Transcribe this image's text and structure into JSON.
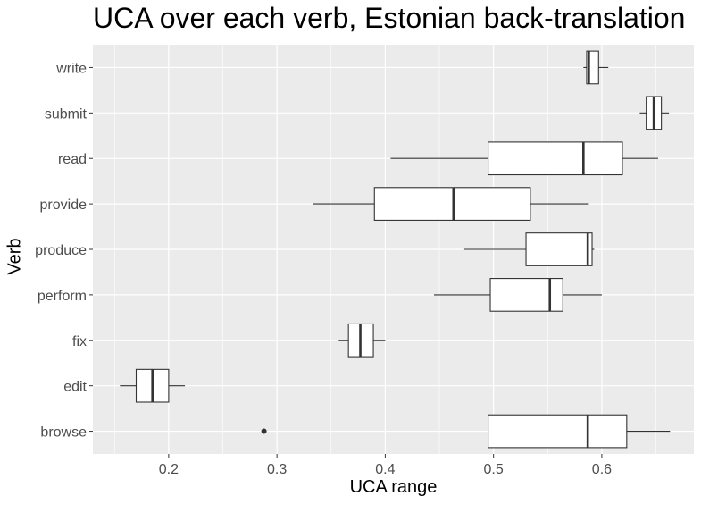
{
  "chart_data": {
    "type": "boxplot",
    "orientation": "horizontal",
    "title": "UCA over each verb, Estonian back-translation",
    "xlabel": "UCA range",
    "ylabel": "Verb",
    "xlim": [
      0.13,
      0.685
    ],
    "x_ticks": [
      0.2,
      0.3,
      0.4,
      0.5,
      0.6
    ],
    "x_tick_labels": [
      "0.2",
      "0.3",
      "0.4",
      "0.5",
      "0.6"
    ],
    "grid": true,
    "categories": [
      "browse",
      "edit",
      "fix",
      "perform",
      "produce",
      "provide",
      "read",
      "submit",
      "write"
    ],
    "boxes": [
      {
        "label": "browse",
        "whisker_low": 0.495,
        "q1": 0.495,
        "median": 0.587,
        "q3": 0.623,
        "whisker_high": 0.663,
        "outliers": [
          0.288
        ]
      },
      {
        "label": "edit",
        "whisker_low": 0.155,
        "q1": 0.17,
        "median": 0.185,
        "q3": 0.2,
        "whisker_high": 0.215,
        "outliers": []
      },
      {
        "label": "fix",
        "whisker_low": 0.357,
        "q1": 0.366,
        "median": 0.377,
        "q3": 0.389,
        "whisker_high": 0.4,
        "outliers": []
      },
      {
        "label": "perform",
        "whisker_low": 0.445,
        "q1": 0.497,
        "median": 0.552,
        "q3": 0.564,
        "whisker_high": 0.6,
        "outliers": []
      },
      {
        "label": "produce",
        "whisker_low": 0.473,
        "q1": 0.53,
        "median": 0.587,
        "q3": 0.591,
        "whisker_high": 0.593,
        "outliers": []
      },
      {
        "label": "provide",
        "whisker_low": 0.333,
        "q1": 0.39,
        "median": 0.463,
        "q3": 0.534,
        "whisker_high": 0.588,
        "outliers": []
      },
      {
        "label": "read",
        "whisker_low": 0.405,
        "q1": 0.495,
        "median": 0.583,
        "q3": 0.619,
        "whisker_high": 0.652,
        "outliers": []
      },
      {
        "label": "submit",
        "whisker_low": 0.635,
        "q1": 0.641,
        "median": 0.648,
        "q3": 0.655,
        "whisker_high": 0.662,
        "outliers": []
      },
      {
        "label": "write",
        "whisker_low": 0.583,
        "q1": 0.586,
        "median": 0.588,
        "q3": 0.597,
        "whisker_high": 0.606,
        "outliers": []
      }
    ],
    "colors": {
      "panel_background": "#ebebeb",
      "grid_major": "#ffffff",
      "box_fill": "#ffffff",
      "box_stroke": "#333333",
      "tick_text": "#4d4d4d"
    }
  }
}
